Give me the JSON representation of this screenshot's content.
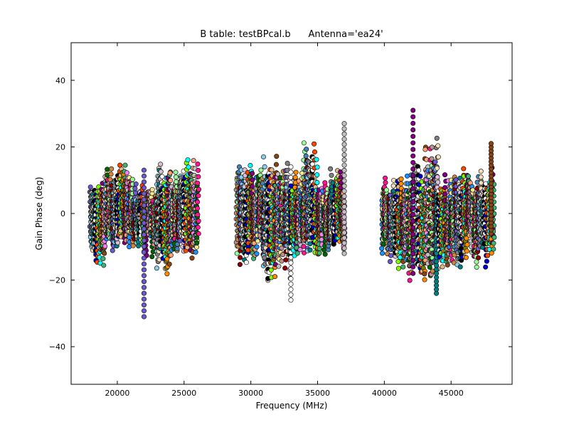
{
  "chart_data": {
    "type": "scatter",
    "title": "B table: testBPcal.b      Antenna='ea24'",
    "xlabel": "Frequency (MHz)",
    "ylabel": "Gain Phase (deg)",
    "xlim": [
      16540,
      49570
    ],
    "ylim": [
      -51.3,
      51.3
    ],
    "xticks": [
      20000,
      25000,
      30000,
      35000,
      40000,
      45000
    ],
    "yticks": [
      40,
      20,
      0,
      -20,
      -40
    ],
    "xtick_labels": [
      "20000",
      "25000",
      "30000",
      "35000",
      "40000",
      "45000"
    ],
    "ytick_labels": [
      "40",
      "20",
      "0",
      "−20",
      "−40"
    ],
    "grid": false,
    "palette": [
      "#6a5acd",
      "#87ceeb",
      "#808080",
      "#f5deb3",
      "#008080",
      "#d8bfd8",
      "#000000",
      "#ffffff",
      "#0000cd",
      "#ff4500",
      "#7cfc00",
      "#deb887",
      "#00ffff",
      "#808000",
      "#ff8c00",
      "#800080",
      "#3cb371",
      "#8b4513",
      "#ffa07a",
      "#ee82ee",
      "#c0c0c0",
      "#1e90ff",
      "#f0e68c",
      "#006400",
      "#ff1493",
      "#bc8f8f",
      "#98fb98",
      "#cd853f",
      "#4682b4",
      "#8b0000"
    ],
    "spectral_windows": [
      {
        "f0": 17980,
        "f1": 18990,
        "lo": -16,
        "hi": 9
      },
      {
        "f0": 18990,
        "f1": 19990,
        "lo": -10,
        "hi": 12
      },
      {
        "f0": 19990,
        "f1": 21000,
        "lo": -10,
        "hi": 13
      },
      {
        "f0": 21000,
        "f1": 22000,
        "lo": -9,
        "hi": 8
      },
      {
        "f0": 22000,
        "f1": 23000,
        "lo": -12,
        "hi": 6,
        "spike": {
          "f": 22000,
          "lo": -31,
          "hi": 13
        }
      },
      {
        "f0": 23000,
        "f1": 24000,
        "lo": -17,
        "hi": 14
      },
      {
        "f0": 24000,
        "f1": 25000,
        "lo": -12,
        "hi": 11
      },
      {
        "f0": 25000,
        "f1": 26050,
        "lo": -12,
        "hi": 16
      },
      {
        "f0": 28950,
        "f1": 29990,
        "lo": -14,
        "hi": 13
      },
      {
        "f0": 29990,
        "f1": 31000,
        "lo": -12,
        "hi": 12
      },
      {
        "f0": 31000,
        "f1": 32000,
        "lo": -19,
        "hi": 15
      },
      {
        "f0": 32000,
        "f1": 33000,
        "lo": -18,
        "hi": 15,
        "spike": {
          "f": 33000,
          "lo": -26,
          "hi": 14
        }
      },
      {
        "f0": 33000,
        "f1": 34000,
        "lo": -12,
        "hi": 10
      },
      {
        "f0": 34000,
        "f1": 35000,
        "lo": -13,
        "hi": 19
      },
      {
        "f0": 35000,
        "f1": 36000,
        "lo": -10,
        "hi": 8
      },
      {
        "f0": 36000,
        "f1": 37000,
        "lo": -12,
        "hi": 13,
        "spike": {
          "f": 37000,
          "lo": -12,
          "hi": 27
        }
      },
      {
        "f0": 39850,
        "f1": 40990,
        "lo": -13,
        "hi": 9
      },
      {
        "f0": 40990,
        "f1": 42000,
        "lo": -18,
        "hi": 9
      },
      {
        "f0": 42000,
        "f1": 43000,
        "lo": -19,
        "hi": 14,
        "spike": {
          "f": 42150,
          "lo": -18,
          "hi": 31
        }
      },
      {
        "f0": 43000,
        "f1": 44000,
        "lo": -21,
        "hi": 22,
        "spike": {
          "f": 43900,
          "lo": -24,
          "hi": 6
        }
      },
      {
        "f0": 44000,
        "f1": 45000,
        "lo": -15,
        "hi": 11
      },
      {
        "f0": 45000,
        "f1": 46000,
        "lo": -15,
        "hi": 12
      },
      {
        "f0": 46000,
        "f1": 47000,
        "lo": -14,
        "hi": 10
      },
      {
        "f0": 47000,
        "f1": 48190,
        "lo": -14,
        "hi": 11,
        "spike": {
          "f": 48000,
          "lo": -6,
          "hi": 21
        }
      }
    ],
    "channels_per_spw": 18,
    "points_per_channel": 12
  }
}
